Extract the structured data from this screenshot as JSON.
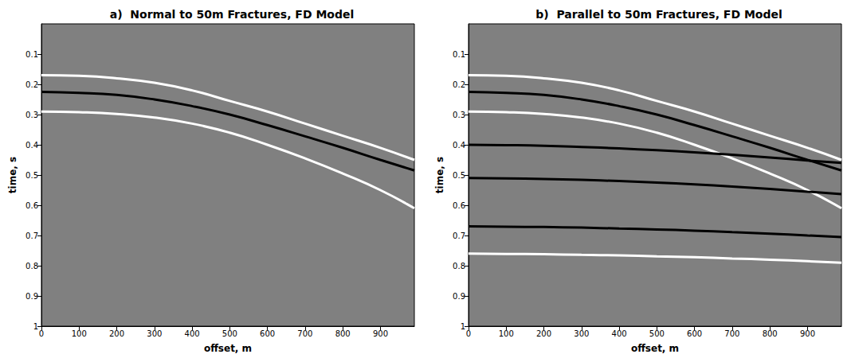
{
  "chart_data": [
    {
      "type": "line",
      "title": "a)  Normal to 50m Fractures, FD Model",
      "xlabel": "offset, m",
      "ylabel": "time, s",
      "x": [
        0,
        100,
        200,
        300,
        400,
        500,
        600,
        700,
        800,
        900,
        990
      ],
      "xlim": [
        0,
        990
      ],
      "xticks": [
        0,
        100,
        200,
        300,
        400,
        500,
        600,
        700,
        800,
        900
      ],
      "ylim": [
        0,
        1
      ],
      "yticks": [
        0.1,
        0.2,
        0.3,
        0.4,
        0.5,
        0.6,
        0.7,
        0.8,
        0.9,
        1
      ],
      "grid": false,
      "series": [
        {
          "color": "#ffffff",
          "values": [
            0.17,
            0.172,
            0.18,
            0.195,
            0.22,
            0.255,
            0.29,
            0.33,
            0.37,
            0.41,
            0.45
          ]
        },
        {
          "color": "#000000",
          "values": [
            0.225,
            0.228,
            0.235,
            0.25,
            0.272,
            0.3,
            0.335,
            0.372,
            0.41,
            0.45,
            0.485
          ]
        },
        {
          "color": "#ffffff",
          "values": [
            0.29,
            0.292,
            0.298,
            0.31,
            0.33,
            0.36,
            0.4,
            0.445,
            0.495,
            0.55,
            0.61
          ]
        }
      ]
    },
    {
      "type": "line",
      "title": "b)  Parallel to 50m Fractures, FD Model",
      "xlabel": "offset, m",
      "ylabel": "time, s",
      "x": [
        0,
        100,
        200,
        300,
        400,
        500,
        600,
        700,
        800,
        900,
        990
      ],
      "xlim": [
        0,
        990
      ],
      "xticks": [
        0,
        100,
        200,
        300,
        400,
        500,
        600,
        700,
        800,
        900
      ],
      "ylim": [
        0,
        1
      ],
      "yticks": [
        0.1,
        0.2,
        0.3,
        0.4,
        0.5,
        0.6,
        0.7,
        0.8,
        0.9,
        1
      ],
      "grid": false,
      "series": [
        {
          "color": "#ffffff",
          "values": [
            0.17,
            0.172,
            0.18,
            0.195,
            0.22,
            0.255,
            0.29,
            0.33,
            0.37,
            0.41,
            0.45
          ]
        },
        {
          "color": "#000000",
          "values": [
            0.225,
            0.228,
            0.235,
            0.25,
            0.272,
            0.3,
            0.335,
            0.372,
            0.41,
            0.45,
            0.485
          ]
        },
        {
          "color": "#ffffff",
          "values": [
            0.29,
            0.292,
            0.298,
            0.31,
            0.33,
            0.36,
            0.4,
            0.445,
            0.495,
            0.55,
            0.61
          ]
        },
        {
          "color": "#000000",
          "values": [
            0.4,
            0.401,
            0.403,
            0.407,
            0.412,
            0.418,
            0.425,
            0.433,
            0.442,
            0.452,
            0.46
          ]
        },
        {
          "color": "#000000",
          "values": [
            0.51,
            0.511,
            0.513,
            0.516,
            0.52,
            0.525,
            0.531,
            0.538,
            0.546,
            0.555,
            0.563
          ]
        },
        {
          "color": "#000000",
          "values": [
            0.67,
            0.671,
            0.672,
            0.674,
            0.677,
            0.68,
            0.684,
            0.689,
            0.694,
            0.7,
            0.705
          ]
        },
        {
          "color": "#ffffff",
          "values": [
            0.76,
            0.761,
            0.762,
            0.764,
            0.766,
            0.769,
            0.772,
            0.776,
            0.78,
            0.785,
            0.79
          ]
        }
      ]
    }
  ]
}
